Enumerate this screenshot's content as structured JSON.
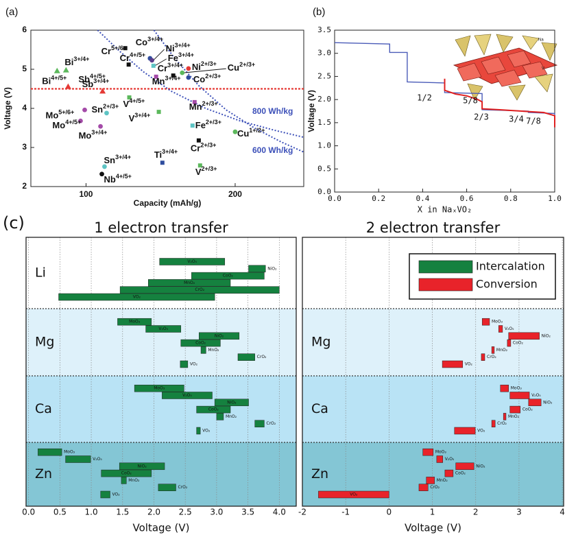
{
  "chart_data": [
    {
      "type": "scatter",
      "panel": "(a)",
      "xlabel": "Capacity (mAh/g)",
      "ylabel": "Voltage (V)",
      "xlim": [
        63,
        246
      ],
      "ylim": [
        2,
        6
      ],
      "xticks": [
        100,
        200
      ],
      "yticks": [
        2,
        3,
        4,
        5,
        6
      ],
      "hline": {
        "value": 4.5,
        "color": "#e53935"
      },
      "curves": [
        {
          "name": "800 Wh/kg",
          "color": "#3b4fb8",
          "x": [
            107.8,
            122.6,
            138.7,
            157.1,
            180.2,
            203.2,
            226.3,
            246.1
          ],
          "y": [
            6.0,
            5.46,
            4.93,
            4.44,
            4.0,
            3.68,
            3.44,
            3.26
          ]
        },
        {
          "name": "600 Wh/kg",
          "color": "#3b4fb8",
          "x": [
            145.6,
            159.4,
            175.6,
            194.0,
            212.4,
            230.9,
            246.1
          ],
          "y": [
            6.0,
            5.28,
            4.58,
            3.96,
            3.51,
            3.14,
            2.88
          ]
        }
      ],
      "points": [
        {
          "element": "Bi",
          "charge": "3+/4+",
          "x": 86.6,
          "y": 4.98,
          "marker": "triangle",
          "color": "#5cb85c"
        },
        {
          "element": "Bi",
          "charge": "4+/5+",
          "x": 80.6,
          "y": 4.96,
          "marker": "triangle",
          "color": "#5cb85c"
        },
        {
          "element": "Sb",
          "charge": "4+/5+",
          "x": 88.0,
          "y": 4.56,
          "marker": "triangle",
          "color": "#e53935"
        },
        {
          "element": "Sb",
          "charge": "3+/4+",
          "x": 111.1,
          "y": 4.44,
          "marker": "triangle",
          "color": "#e53935"
        },
        {
          "element": "Cr",
          "charge": "5+/6+",
          "x": 126.3,
          "y": 5.54,
          "marker": "square",
          "color": "#111111"
        },
        {
          "element": "Cr",
          "charge": "4+/5+",
          "x": 128.6,
          "y": 5.12,
          "marker": "square",
          "color": "#111111"
        },
        {
          "element": "Co",
          "charge": "3+/4+",
          "x": 142.9,
          "y": 5.28,
          "marker": "circle",
          "color": "#2f4d9e"
        },
        {
          "element": "Ni",
          "charge": "3+/4+",
          "x": 144.2,
          "y": 5.23,
          "marker": "circle",
          "color": "#5a3d8a"
        },
        {
          "element": "Fe",
          "charge": "3+/4+",
          "x": 145.2,
          "y": 5.09,
          "marker": "square",
          "color": "#5ec4c4"
        },
        {
          "element": "Cr",
          "charge": "3+/4+",
          "x": 158.5,
          "y": 4.84,
          "marker": "square",
          "color": "#111111"
        },
        {
          "element": "Mn",
          "charge": "3+/4+",
          "x": 147.0,
          "y": 4.81,
          "marker": "square",
          "color": "#a44ba8"
        },
        {
          "element": "Ni",
          "charge": "2+/3+",
          "x": 168.7,
          "y": 5.02,
          "marker": "circle",
          "color": "#e53935"
        },
        {
          "element": "Cu",
          "charge": "2+/3+",
          "x": 164.5,
          "y": 4.91,
          "marker": "circle",
          "color": "#5cb85c"
        },
        {
          "element": "Co",
          "charge": "2+/3+",
          "x": 168.7,
          "y": 4.79,
          "marker": "circle",
          "color": "#2f4d9e"
        },
        {
          "element": "Mo",
          "charge": "5+/6+",
          "x": 99.1,
          "y": 3.96,
          "marker": "circle",
          "color": "#a44ba8"
        },
        {
          "element": "Mo",
          "charge": "4+/5+",
          "x": 96.3,
          "y": 3.68,
          "marker": "circle",
          "color": "#a44ba8"
        },
        {
          "element": "Mo",
          "charge": "3+/4+",
          "x": 109.7,
          "y": 3.54,
          "marker": "circle",
          "color": "#a44ba8"
        },
        {
          "element": "Sn",
          "charge": "2+/3+",
          "x": 113.8,
          "y": 3.88,
          "marker": "circle",
          "color": "#5ec4c4"
        },
        {
          "element": "V",
          "charge": "4+/5+",
          "x": 129.0,
          "y": 4.28,
          "marker": "square",
          "color": "#5cb85c"
        },
        {
          "element": "V",
          "charge": "3+/4+",
          "x": 148.8,
          "y": 3.91,
          "marker": "square",
          "color": "#5cb85c"
        },
        {
          "element": "Mn",
          "charge": "2+/3+",
          "x": 172.8,
          "y": 4.16,
          "marker": "square",
          "color": "#a44ba8"
        },
        {
          "element": "Fe",
          "charge": "2+/3+",
          "x": 171.4,
          "y": 3.56,
          "marker": "square",
          "color": "#5ec4c4"
        },
        {
          "element": "Cu",
          "charge": "1+/2+",
          "x": 200.0,
          "y": 3.4,
          "marker": "circle",
          "color": "#5cb85c"
        },
        {
          "element": "Cr",
          "charge": "2+/3+",
          "x": 175.6,
          "y": 3.18,
          "marker": "square",
          "color": "#111111"
        },
        {
          "element": "Ti",
          "charge": "3+/4+",
          "x": 151.2,
          "y": 2.61,
          "marker": "square",
          "color": "#2f4d9e"
        },
        {
          "element": "V",
          "charge": "2+/3+",
          "x": 176.5,
          "y": 2.54,
          "marker": "square",
          "color": "#5cb85c"
        },
        {
          "element": "Sn",
          "charge": "3+/4+",
          "x": 112.4,
          "y": 2.51,
          "marker": "circle",
          "color": "#5ec4c4"
        },
        {
          "element": "Nb",
          "charge": "4+/5+",
          "x": 110.6,
          "y": 2.32,
          "marker": "circle",
          "color": "#111111"
        }
      ]
    },
    {
      "type": "line",
      "panel": "(b)",
      "xlabel": "X in NaₓVO₂",
      "ylabel": "Voltage (V)",
      "xlim": [
        0,
        1.0
      ],
      "ylim": [
        0,
        3.5
      ],
      "xticks": [
        {
          "value": 0,
          "label": "0.0"
        },
        0.2,
        0.4,
        0.6,
        0.8,
        {
          "value": 1,
          "label": "1.0"
        }
      ],
      "yticks": [
        {
          "value": 0,
          "label": "0.0"
        },
        0.5,
        {
          "value": 1,
          "label": "1.0"
        },
        1.5,
        {
          "value": 2,
          "label": "2.0"
        },
        2.5,
        {
          "value": 3,
          "label": "3.0"
        },
        3.5
      ],
      "series": [
        {
          "color": "#4a5bb8",
          "x": [
            0,
            0.25,
            0.25,
            0.33,
            0.33,
            0.5,
            0.5,
            0.67,
            0.67,
            0.88,
            0.88,
            1.0,
            1.0
          ],
          "values": [
            3.23,
            3.2,
            3.02,
            3.02,
            2.38,
            2.36,
            2.15,
            2.13,
            1.78,
            1.75,
            1.72,
            1.7,
            1.4
          ]
        },
        {
          "color": "#e02020",
          "x": [
            0.5,
            0.5,
            0.55,
            0.6,
            0.65,
            0.67,
            0.67,
            0.75,
            0.85,
            0.95,
            1.0,
            1.0
          ],
          "values": [
            2.45,
            2.2,
            2.12,
            2.08,
            2.0,
            1.95,
            1.8,
            1.78,
            1.75,
            1.72,
            1.65,
            1.4
          ]
        }
      ],
      "annotations": [
        "1/2",
        "5/8",
        "2/3",
        "3/4",
        "7/8"
      ],
      "inset_labels": [
        "Na",
        "V"
      ]
    },
    {
      "type": "range_bar",
      "panel": "(c)",
      "title": "1 electron transfer",
      "xlabel": "Voltage (V)",
      "xlim": [
        -0.04,
        4.27
      ],
      "xticks": [
        {
          "value": 0,
          "label": "0.0"
        },
        0.5,
        {
          "value": 1,
          "label": "1.0"
        },
        1.5,
        {
          "value": 2,
          "label": "2.0"
        },
        2.5,
        {
          "value": 3,
          "label": "3.0"
        },
        3.5,
        {
          "value": 4,
          "label": "4.0"
        }
      ],
      "grid": true,
      "color": "#15813f",
      "categories": [
        "Li",
        "Mg",
        "Ca",
        "Zn"
      ],
      "bars": [
        [
          {
            "label": "V₂O₅",
            "values": [
              2.09,
              3.13
            ]
          },
          {
            "label": "NiO₂",
            "values": [
              3.51,
              3.78
            ]
          },
          {
            "label": "CoO₂",
            "values": [
              2.6,
              3.76
            ]
          },
          {
            "label": "MnO₂",
            "values": [
              1.91,
              3.22
            ]
          },
          {
            "label": "CrO₂",
            "values": [
              1.46,
              4.0
            ]
          },
          {
            "label": "VO₂",
            "values": [
              0.48,
              2.97
            ]
          }
        ],
        [
          {
            "label": "MoO₃",
            "values": [
              1.42,
              1.96
            ]
          },
          {
            "label": "V₂O₅",
            "values": [
              1.87,
              2.43
            ]
          },
          {
            "label": "NiO₂",
            "values": [
              2.72,
              3.36
            ]
          },
          {
            "label": "CoO₂",
            "values": [
              2.43,
              3.06
            ]
          },
          {
            "label": "MnO₂",
            "values": [
              2.75,
              2.83
            ]
          },
          {
            "label": "CrO₂",
            "values": [
              3.34,
              3.61
            ]
          },
          {
            "label": "VO₂",
            "values": [
              2.42,
              2.54
            ]
          }
        ],
        [
          {
            "label": "MoO₃",
            "values": [
              1.69,
              2.48
            ]
          },
          {
            "label": "V₂O₅",
            "values": [
              2.13,
              2.93
            ]
          },
          {
            "label": "NiO₂",
            "values": [
              2.97,
              3.51
            ]
          },
          {
            "label": "CoO₂",
            "values": [
              2.68,
              3.22
            ]
          },
          {
            "label": "MnO₂",
            "values": [
              3.0,
              3.11
            ]
          },
          {
            "label": "CrO₂",
            "values": [
              3.61,
              3.76
            ]
          },
          {
            "label": "VO₂",
            "values": [
              2.68,
              2.74
            ]
          }
        ],
        [
          {
            "label": "MoO₃",
            "values": [
              0.15,
              0.53
            ]
          },
          {
            "label": "V₂O₅",
            "values": [
              0.59,
              0.99
            ]
          },
          {
            "label": "NiO₂",
            "values": [
              1.45,
              2.17
            ]
          },
          {
            "label": "CoO₂",
            "values": [
              1.16,
              1.96
            ]
          },
          {
            "label": "MnO₂",
            "values": [
              1.48,
              1.56
            ]
          },
          {
            "label": "CrO₂",
            "values": [
              2.07,
              2.35
            ]
          },
          {
            "label": "VO₂",
            "values": [
              1.15,
              1.3
            ]
          }
        ]
      ]
    },
    {
      "type": "range_bar",
      "title": "2 electron transfer",
      "xlabel": "Voltage (V)",
      "xlim": [
        -2,
        4.03
      ],
      "xticks": [
        -2,
        -1,
        0,
        1,
        2,
        3,
        4
      ],
      "grid": true,
      "color": "#e8232a",
      "legend": {
        "corner": "upper right",
        "entries": [
          {
            "name": "Intercalation",
            "color": "#15813f"
          },
          {
            "name": "Conversion",
            "color": "#e8232a"
          }
        ]
      },
      "categories": [
        null,
        "Mg",
        "Ca",
        "Zn"
      ],
      "bars": [
        [],
        [
          {
            "label": "MoO₃",
            "values": [
              2.15,
              2.32
            ]
          },
          {
            "label": "V₂O₅",
            "values": [
              2.53,
              2.62
            ]
          },
          {
            "label": "NiO₂",
            "values": [
              2.76,
              3.47
            ]
          },
          {
            "label": "CoO₂",
            "values": [
              2.73,
              2.81
            ]
          },
          {
            "label": "MnO₂",
            "values": [
              2.37,
              2.43
            ]
          },
          {
            "label": "CrO₂",
            "values": [
              2.13,
              2.21
            ]
          },
          {
            "label": "VO₂",
            "values": [
              1.23,
              1.7
            ]
          }
        ],
        [
          {
            "label": "MoO₃",
            "values": [
              2.57,
              2.76
            ]
          },
          {
            "label": "V₂O₅",
            "values": [
              2.79,
              3.24
            ]
          },
          {
            "label": "NiO₂",
            "values": [
              3.22,
              3.51
            ]
          },
          {
            "label": "CoO₂",
            "values": [
              2.79,
              3.03
            ]
          },
          {
            "label": "MnO₂",
            "values": [
              2.64,
              2.7
            ]
          },
          {
            "label": "CrO₂",
            "values": [
              2.37,
              2.45
            ]
          },
          {
            "label": "VO₂",
            "values": [
              1.51,
              1.99
            ]
          }
        ],
        [
          {
            "label": "MoO₃",
            "values": [
              0.78,
              1.02
            ]
          },
          {
            "label": "V₂O₅",
            "values": [
              1.1,
              1.24
            ]
          },
          {
            "label": "NiO₂",
            "values": [
              1.54,
              1.96
            ]
          },
          {
            "label": "CoO₂",
            "values": [
              1.29,
              1.48
            ]
          },
          {
            "label": "MnO₂",
            "values": [
              0.86,
              1.05
            ]
          },
          {
            "label": "CrO₂",
            "values": [
              0.69,
              0.9
            ]
          },
          {
            "label": "VO₂",
            "values": [
              -1.63,
              0.0
            ]
          }
        ]
      ]
    }
  ]
}
